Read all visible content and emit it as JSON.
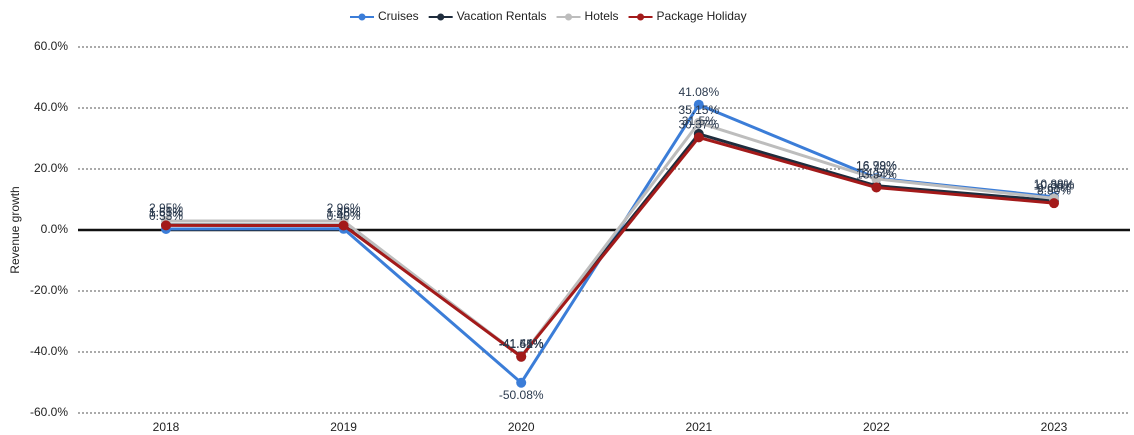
{
  "chart_data": {
    "type": "line",
    "y_label": "Revenue growth",
    "categories": [
      "2018",
      "2019",
      "2020",
      "2021",
      "2022",
      "2023"
    ],
    "series": [
      {
        "name": "Cruises",
        "color": "#3b7dd8",
        "values": [
          0.33,
          0.4,
          -50.08,
          41.08,
          16.99,
          10.88
        ],
        "value_labels": [
          "0.33%",
          "0.40%",
          "-50.08%",
          "41.08%",
          "16.99%",
          "10.88%"
        ]
      },
      {
        "name": "Vacation Rentals",
        "color": "#1f2d3d",
        "values": [
          1.65,
          1.56,
          -41.44,
          31.5,
          14.5,
          9.61
        ],
        "value_labels": [
          "1.65%",
          "1.56%",
          "-41.44%",
          "31.5%",
          "14.5%",
          "9.61%"
        ]
      },
      {
        "name": "Hotels",
        "color": "#bdbdbd",
        "values": [
          2.95,
          2.96,
          -41.61,
          35.15,
          16.78,
          10.38
        ],
        "value_labels": [
          "2.95%",
          "2.96%",
          "-41.61%",
          "35.15%",
          "16.78%",
          "10.38%"
        ]
      },
      {
        "name": "Package Holiday",
        "color": "#a31a1a",
        "values": [
          1.51,
          1.48,
          -41.55,
          30.37,
          13.94,
          8.8
        ],
        "value_labels": [
          "1.51%",
          "1.48%",
          "-41.55%",
          "30.37%",
          "13.94%",
          "8.80%"
        ]
      }
    ],
    "ylim": [
      -60,
      60
    ],
    "yticks": [
      {
        "value": -60,
        "label": "-60.0%"
      },
      {
        "value": -40,
        "label": "-40.0%"
      },
      {
        "value": -20,
        "label": "-20.0%"
      },
      {
        "value": 0,
        "label": "0.0%"
      },
      {
        "value": 20,
        "label": "20.0%"
      },
      {
        "value": 40,
        "label": "40.0%"
      },
      {
        "value": 60,
        "label": "60.0%"
      }
    ],
    "grid": true,
    "legend": "top"
  }
}
